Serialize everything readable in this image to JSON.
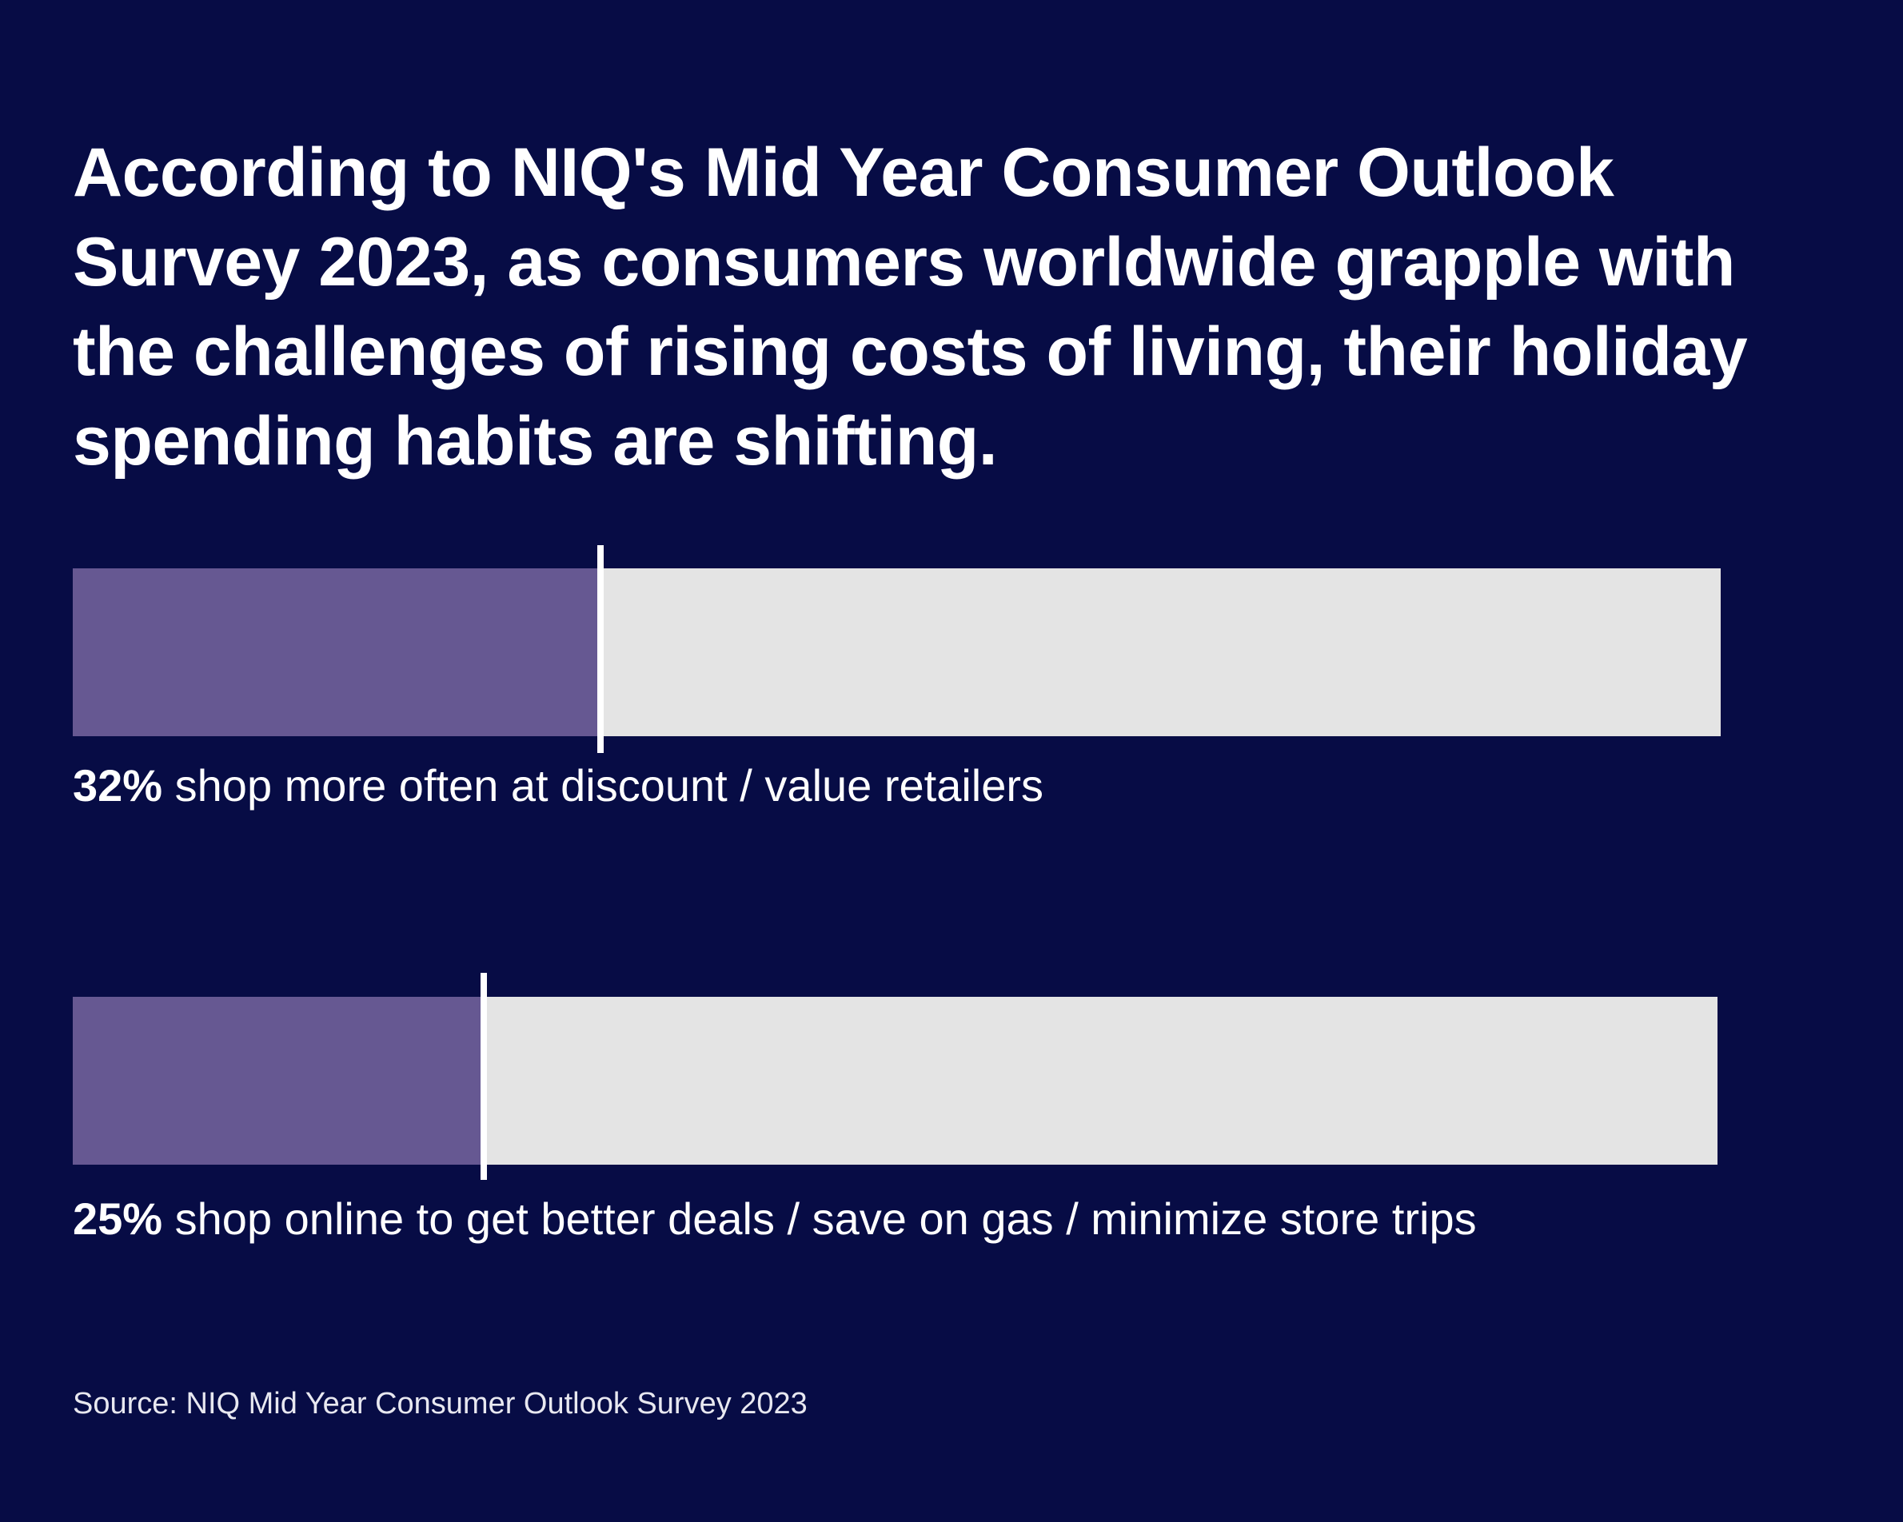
{
  "title": "According to NIQ's Mid Year Consumer Outlook Survey 2023, as consumers worldwide grapple with the challenges of rising costs of living, their holiday spending habits are shifting.",
  "colors": {
    "background": "#070c45",
    "fill": "#665892",
    "track": "#e4e4e4",
    "marker": "#ffffff"
  },
  "chart_data": {
    "type": "bar",
    "orientation": "horizontal",
    "xlim": [
      0,
      100
    ],
    "grid": false,
    "items": [
      {
        "value": 32,
        "value_label": "32%",
        "description": "shop more often at discount / value retailers"
      },
      {
        "value": 25,
        "value_label": "25%",
        "description": "shop online to get better deals / save on gas / minimize store trips"
      }
    ]
  },
  "source": "Source: NIQ Mid Year Consumer Outlook Survey 2023"
}
